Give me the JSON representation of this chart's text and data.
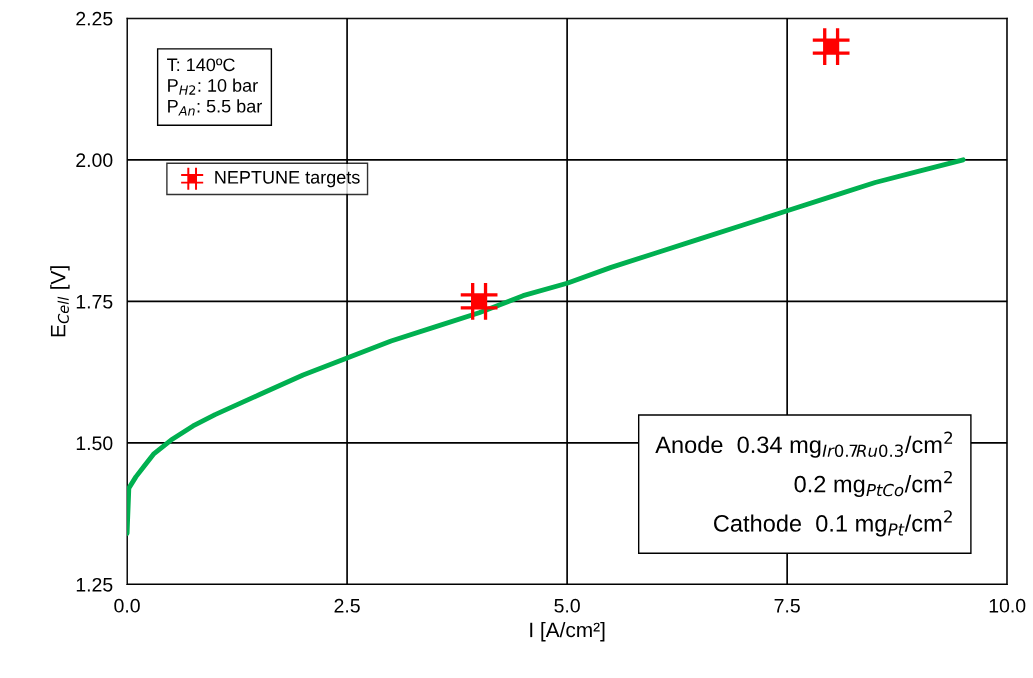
{
  "chart_data": {
    "type": "line",
    "xlabel": "I [A/cm²]",
    "ylabel": "E$_{Cell}$ [V]",
    "xlim": [
      0,
      10
    ],
    "ylim": [
      1.25,
      2.25
    ],
    "xticks": [
      {
        "value": 0,
        "label": "0.0"
      },
      2.5,
      {
        "value": 5,
        "label": "5.0"
      },
      7.5,
      {
        "value": 10,
        "label": "10.0"
      }
    ],
    "yticks": [
      1.25,
      {
        "value": 1.5,
        "label": "1.50"
      },
      1.75,
      {
        "value": 2,
        "label": "2.00"
      },
      2.25
    ],
    "grid": true,
    "legend": "top left",
    "series": [
      {
        "color": "#00b050",
        "x": [
          0.0,
          0.02,
          0.1,
          0.2,
          0.3,
          0.5,
          0.75,
          1.0,
          1.5,
          2.0,
          2.5,
          3.0,
          3.5,
          4.0,
          4.5,
          5.0,
          5.5,
          6.0,
          6.5,
          7.0,
          7.5,
          8.0,
          8.5,
          9.0,
          9.5
        ],
        "values": [
          1.34,
          1.42,
          1.44,
          1.46,
          1.48,
          1.505,
          1.53,
          1.55,
          1.585,
          1.62,
          1.65,
          1.68,
          1.705,
          1.73,
          1.76,
          1.782,
          1.81,
          1.835,
          1.86,
          1.885,
          1.91,
          1.935,
          1.96,
          1.98,
          2.0
        ]
      },
      {
        "type": "scatter",
        "name": "NEPTUNE targets",
        "color": "#ff0000",
        "x": [
          4,
          8
        ],
        "values": [
          1.75,
          2.2
        ]
      }
    ],
    "annotations": [
      "T: 140ºC\nP$_{H2}$: 10 bar\nP$_{An}$: 5.5 bar",
      "Anode  0.34 mg$_{Ir0.7Ru0.3}$/cm$^{2}$\n0.2 mg$_{PtCo}$/cm$^{2}$\nCathode  0.1 mg$_{Pt}$/cm$^{2}$"
    ]
  }
}
